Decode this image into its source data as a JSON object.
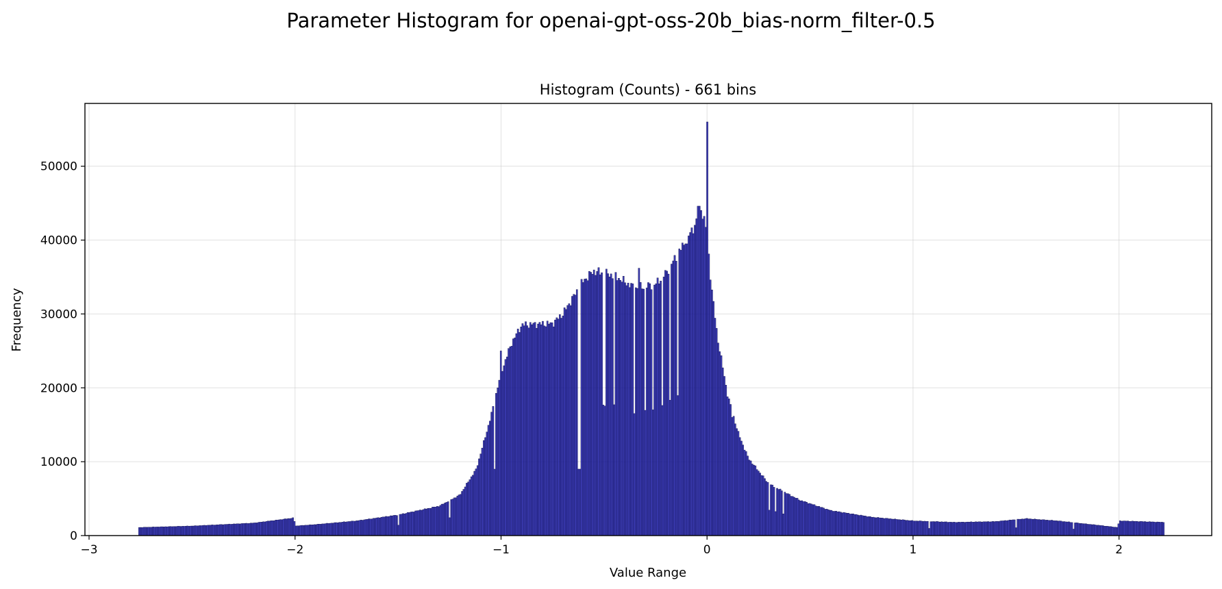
{
  "chart_data": {
    "type": "bar",
    "suptitle": "Parameter Histogram for openai-gpt-oss-20b_bias-norm_filter-0.5",
    "title": "Histogram (Counts) - 661 bins",
    "xlabel": "Value Range",
    "ylabel": "Frequency",
    "bins": 661,
    "xlim": [
      -3.02,
      2.45
    ],
    "ylim": [
      0,
      58500
    ],
    "x_ticks": [
      -3,
      -2,
      -1,
      0,
      1,
      2
    ],
    "x_tick_labels": [
      "−3",
      "−2",
      "−1",
      "0",
      "1",
      "2"
    ],
    "y_ticks": [
      0,
      10000,
      20000,
      30000,
      40000,
      50000
    ],
    "y_tick_labels": [
      "0",
      "10000",
      "20000",
      "30000",
      "40000",
      "50000"
    ],
    "grid": true,
    "bar_color": "#1a1aa6",
    "edge_color": "#000033",
    "data_range": [
      -2.76,
      2.22
    ],
    "profile": [
      [
        -2.76,
        1100
      ],
      [
        -2.5,
        1300
      ],
      [
        -2.2,
        1700
      ],
      [
        -2.005,
        2400
      ],
      [
        -2.0,
        1300
      ],
      [
        -1.9,
        1500
      ],
      [
        -1.7,
        2000
      ],
      [
        -1.5,
        2800
      ],
      [
        -1.3,
        4000
      ],
      [
        -1.2,
        5500
      ],
      [
        -1.12,
        9000
      ],
      [
        -1.05,
        16000
      ],
      [
        -1.0,
        22000
      ],
      [
        -0.95,
        26000
      ],
      [
        -0.9,
        28500
      ],
      [
        -0.85,
        28600
      ],
      [
        -0.75,
        28700
      ],
      [
        -0.7,
        30000
      ],
      [
        -0.6,
        34500
      ],
      [
        -0.55,
        35800
      ],
      [
        -0.45,
        35200
      ],
      [
        -0.35,
        33500
      ],
      [
        -0.25,
        34000
      ],
      [
        -0.2,
        35500
      ],
      [
        -0.1,
        40000
      ],
      [
        -0.05,
        42500
      ],
      [
        -0.03,
        44500
      ],
      [
        0.0,
        41000
      ],
      [
        0.02,
        34000
      ],
      [
        0.05,
        27000
      ],
      [
        0.1,
        19000
      ],
      [
        0.15,
        14000
      ],
      [
        0.2,
        10500
      ],
      [
        0.3,
        7000
      ],
      [
        0.45,
        4800
      ],
      [
        0.6,
        3400
      ],
      [
        0.8,
        2500
      ],
      [
        1.0,
        2000
      ],
      [
        1.2,
        1800
      ],
      [
        1.4,
        1900
      ],
      [
        1.55,
        2300
      ],
      [
        1.7,
        2000
      ],
      [
        1.9,
        1400
      ],
      [
        1.995,
        1100
      ],
      [
        2.0,
        2000
      ],
      [
        2.22,
        1800
      ]
    ],
    "spikes": [
      [
        -1.0,
        25000
      ],
      [
        -0.62,
        18000
      ],
      [
        -0.33,
        36200
      ],
      [
        -0.1,
        39500
      ],
      [
        -0.04,
        44600
      ],
      [
        0.0,
        56000
      ],
      [
        0.12,
        16000
      ]
    ],
    "dips": [
      -1.5,
      -1.25,
      -1.03,
      -0.62,
      -0.5,
      -0.45,
      -0.35,
      -0.3,
      -0.26,
      -0.22,
      -0.18,
      -0.14,
      0.3,
      0.33,
      0.37,
      1.08,
      1.5,
      1.78
    ]
  }
}
